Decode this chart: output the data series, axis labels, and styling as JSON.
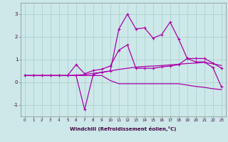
{
  "xlabel": "Windchill (Refroidissement éolien,°C)",
  "background_color": "#cce8e8",
  "grid_color": "#aacccc",
  "line_color": "#aa00aa",
  "x_hours": [
    0,
    1,
    2,
    3,
    4,
    5,
    6,
    7,
    8,
    9,
    10,
    11,
    12,
    13,
    14,
    15,
    16,
    17,
    18,
    19,
    20,
    21,
    22,
    23
  ],
  "line1_y": [
    0.3,
    0.3,
    0.3,
    0.3,
    0.3,
    0.3,
    0.3,
    -1.2,
    0.35,
    0.45,
    0.5,
    2.35,
    3.0,
    2.35,
    2.4,
    1.95,
    2.1,
    2.65,
    1.9,
    1.05,
    0.9,
    0.9,
    0.65,
    -0.2
  ],
  "line2_y": [
    0.3,
    0.3,
    0.3,
    0.3,
    0.3,
    0.3,
    0.78,
    0.38,
    0.52,
    0.58,
    0.72,
    1.42,
    1.65,
    0.62,
    0.62,
    0.62,
    0.68,
    0.72,
    0.78,
    1.05,
    1.05,
    1.05,
    0.85,
    0.62
  ],
  "line3_y": [
    0.3,
    0.3,
    0.3,
    0.3,
    0.3,
    0.3,
    0.32,
    0.34,
    0.4,
    0.44,
    0.5,
    0.57,
    0.62,
    0.67,
    0.7,
    0.72,
    0.74,
    0.77,
    0.8,
    0.83,
    0.85,
    0.88,
    0.82,
    0.74
  ],
  "line4_y": [
    0.3,
    0.3,
    0.3,
    0.3,
    0.3,
    0.3,
    0.3,
    0.3,
    0.3,
    0.3,
    0.08,
    -0.06,
    -0.06,
    -0.06,
    -0.06,
    -0.06,
    -0.06,
    -0.06,
    -0.06,
    -0.12,
    -0.18,
    -0.22,
    -0.28,
    -0.32
  ],
  "ylim": [
    -1.5,
    3.5
  ],
  "yticks": [
    -1,
    0,
    1,
    2,
    3
  ],
  "xlim": [
    -0.5,
    23.5
  ]
}
